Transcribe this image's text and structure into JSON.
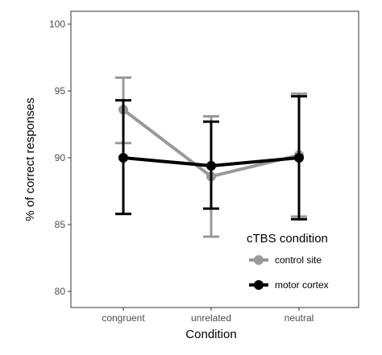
{
  "chart_data": {
    "type": "line",
    "xlabel": "Condition",
    "ylabel": "% of correct responses",
    "categories": [
      "congruent",
      "unrelated",
      "neutral"
    ],
    "ylim": [
      80,
      100
    ],
    "yticks": [
      80,
      85,
      90,
      95,
      100
    ],
    "grid": false,
    "legend": {
      "title": "cTBS condition",
      "placement": "bottom-right"
    },
    "series": [
      {
        "name": "control site",
        "color": "#999999",
        "values": [
          93.6,
          88.6,
          90.2
        ],
        "err_low": [
          91.1,
          84.1,
          85.6
        ],
        "err_high": [
          96.0,
          93.1,
          94.8
        ]
      },
      {
        "name": "motor cortex",
        "color": "#000000",
        "values": [
          90.0,
          89.4,
          90.0
        ],
        "err_low": [
          85.8,
          86.2,
          85.4
        ],
        "err_high": [
          94.3,
          92.7,
          94.6
        ]
      }
    ]
  }
}
